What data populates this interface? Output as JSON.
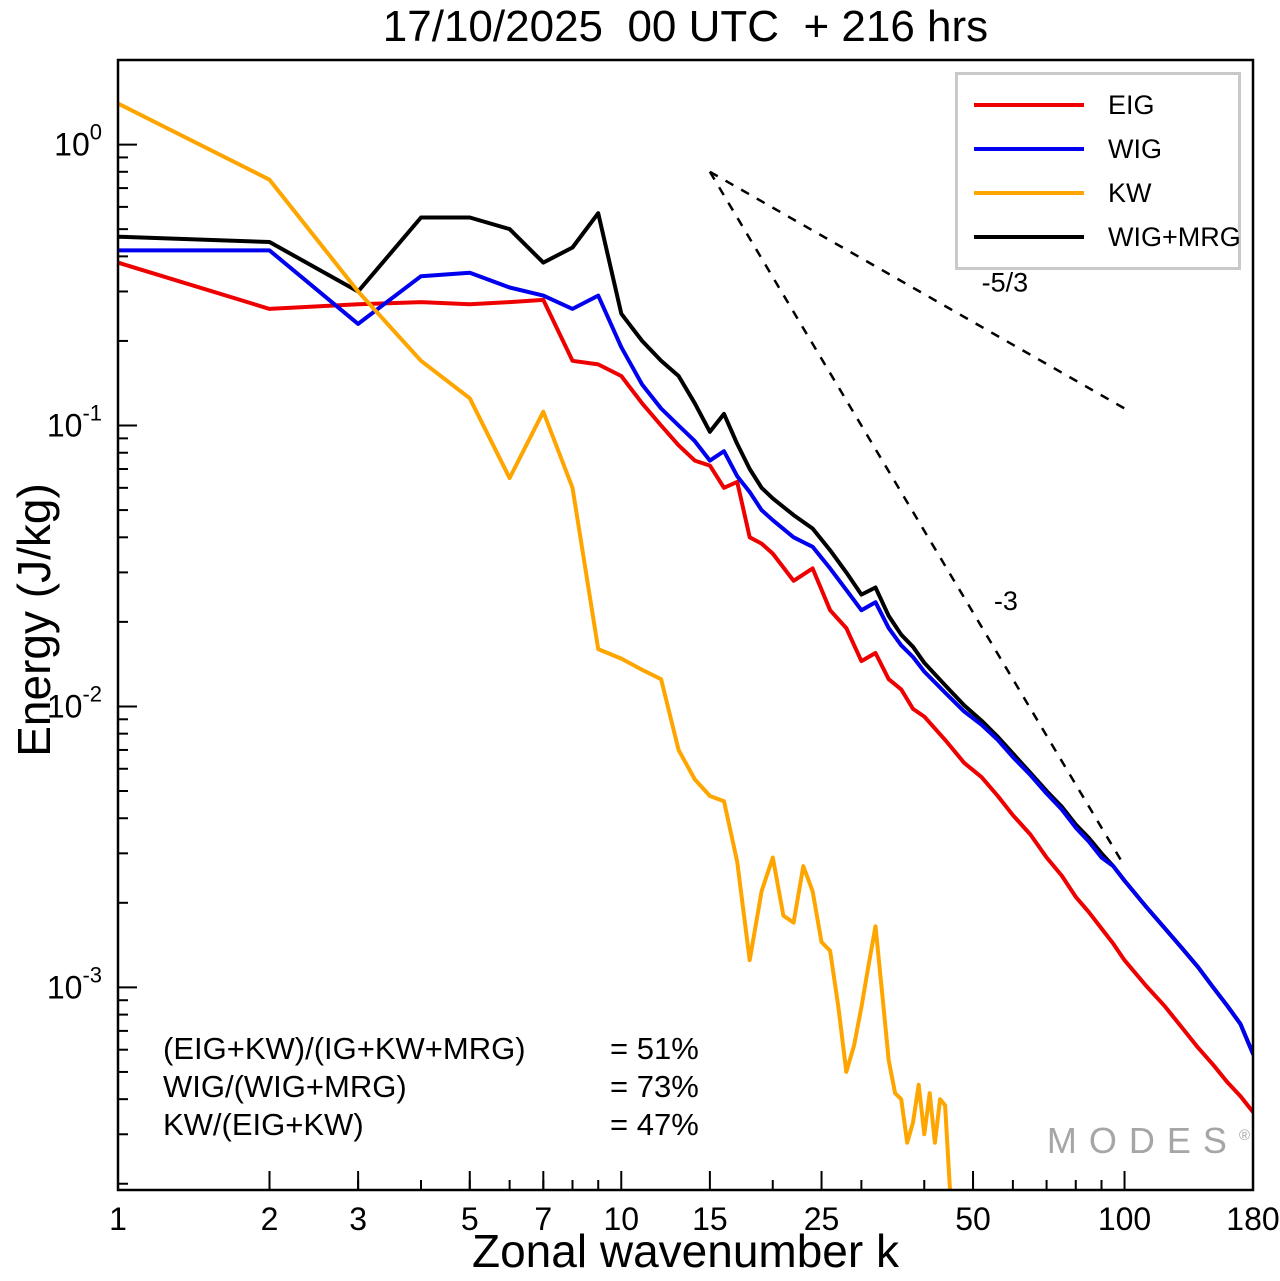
{
  "title": "17/10/2025  00 UTC  + 216 hrs",
  "axes": {
    "x": {
      "label": "Zonal wavenumber k",
      "min": 1,
      "max": 180,
      "scale": "log",
      "major_ticks": [
        1,
        2,
        3,
        5,
        7,
        10,
        15,
        25,
        50,
        100,
        180
      ]
    },
    "y": {
      "label": "Energy (J/kg)",
      "min": 0.00019,
      "max": 2.0,
      "scale": "log",
      "major_tick_exponents": [
        0,
        -1,
        -2,
        -3
      ]
    }
  },
  "legend": {
    "items": [
      {
        "label": "EIG",
        "color": "#ee0000"
      },
      {
        "label": "WIG",
        "color": "#0000ee"
      },
      {
        "label": "KW",
        "color": "#ffa500"
      },
      {
        "label": "WIG+MRG",
        "color": "#000000"
      }
    ]
  },
  "reference_lines": [
    {
      "label": "-5/3",
      "from": [
        15,
        0.8
      ],
      "to": [
        100,
        0.115
      ],
      "label_pos": [
        52,
        0.3
      ]
    },
    {
      "label": "-3",
      "from": [
        15,
        0.8
      ],
      "to": [
        100,
        0.0027
      ],
      "label_pos": [
        55,
        0.022
      ]
    }
  ],
  "ratio_annotations": {
    "rows": [
      {
        "formula": "(EIG+KW)/(IG+KW+MRG)",
        "value": "= 51%"
      },
      {
        "formula": "WIG/(WIG+MRG)",
        "value": "= 73%"
      },
      {
        "formula": "KW/(EIG+KW)",
        "value": "= 47%"
      }
    ]
  },
  "watermark": {
    "text": "MODES",
    "mark": "®"
  },
  "chart_data": {
    "type": "line",
    "title": "17/10/2025  00 UTC  + 216 hrs",
    "xlabel": "Zonal wavenumber k",
    "ylabel": "Energy (J/kg)",
    "xscale": "log",
    "yscale": "log",
    "xlim": [
      1,
      180
    ],
    "ylim": [
      0.00019,
      2.0
    ],
    "x": [
      1,
      2,
      3,
      4,
      5,
      6,
      7,
      8,
      9,
      10,
      11,
      12,
      13,
      14,
      15,
      16,
      17,
      18,
      19,
      20,
      22,
      24,
      26,
      28,
      30,
      32,
      34,
      36,
      38,
      40,
      44,
      48,
      52,
      56,
      60,
      65,
      70,
      75,
      80,
      85,
      90,
      95,
      100,
      110,
      120,
      130,
      140,
      150,
      160,
      170,
      180
    ],
    "series": [
      {
        "name": "EIG",
        "color": "#ee0000",
        "z": 1,
        "values": [
          0.38,
          0.26,
          0.27,
          0.275,
          0.27,
          0.275,
          0.28,
          0.17,
          0.165,
          0.15,
          0.12,
          0.1,
          0.085,
          0.075,
          0.072,
          0.06,
          0.063,
          0.04,
          0.038,
          0.035,
          0.028,
          0.031,
          0.022,
          0.019,
          0.0145,
          0.0155,
          0.0125,
          0.0115,
          0.0098,
          0.0092,
          0.0076,
          0.0063,
          0.0056,
          0.0048,
          0.0041,
          0.0035,
          0.0029,
          0.0025,
          0.0021,
          0.00185,
          0.00162,
          0.00143,
          0.00125,
          0.00102,
          0.00086,
          0.00072,
          0.00061,
          0.00053,
          0.00046,
          0.00041,
          0.00036
        ]
      },
      {
        "name": "WIG",
        "color": "#0000ee",
        "z": 3,
        "values": [
          0.42,
          0.42,
          0.23,
          0.34,
          0.35,
          0.31,
          0.29,
          0.26,
          0.29,
          0.19,
          0.14,
          0.115,
          0.1,
          0.088,
          0.075,
          0.081,
          0.066,
          0.058,
          0.05,
          0.046,
          0.04,
          0.037,
          0.031,
          0.026,
          0.022,
          0.0235,
          0.019,
          0.0165,
          0.015,
          0.0133,
          0.0112,
          0.0096,
          0.0086,
          0.0076,
          0.0066,
          0.0057,
          0.0049,
          0.0043,
          0.0037,
          0.0033,
          0.0029,
          0.0027,
          0.0024,
          0.00195,
          0.00163,
          0.00138,
          0.00118,
          0.001,
          0.00086,
          0.00074,
          0.00058
        ]
      },
      {
        "name": "KW",
        "color": "#ffa500",
        "z": 4,
        "x": [
          1,
          2,
          3,
          4,
          5,
          6,
          7,
          8,
          9,
          10,
          11,
          12,
          13,
          14,
          15,
          16,
          17,
          18,
          19,
          20,
          21,
          22,
          23,
          24,
          25,
          26,
          27,
          28,
          29,
          30,
          31,
          32,
          33,
          34,
          35,
          36,
          37,
          38,
          39,
          40,
          41,
          42,
          43,
          44,
          45
        ],
        "values": [
          1.4,
          0.75,
          0.3,
          0.17,
          0.125,
          0.065,
          0.112,
          0.06,
          0.016,
          0.0148,
          0.0135,
          0.0125,
          0.007,
          0.0055,
          0.0048,
          0.0046,
          0.0028,
          0.00125,
          0.0022,
          0.0029,
          0.0018,
          0.0017,
          0.0027,
          0.0022,
          0.00145,
          0.00135,
          0.00085,
          0.0005,
          0.00062,
          0.00085,
          0.0012,
          0.00165,
          0.00095,
          0.00055,
          0.00042,
          0.0004,
          0.00028,
          0.00033,
          0.00045,
          0.0003,
          0.00042,
          0.00028,
          0.0004,
          0.00038,
          0.00019
        ]
      },
      {
        "name": "WIG+MRG",
        "color": "#000000",
        "z": 2,
        "values": [
          0.47,
          0.45,
          0.3,
          0.55,
          0.55,
          0.5,
          0.38,
          0.43,
          0.57,
          0.25,
          0.2,
          0.17,
          0.15,
          0.12,
          0.095,
          0.11,
          0.086,
          0.07,
          0.06,
          0.055,
          0.048,
          0.043,
          0.036,
          0.03,
          0.025,
          0.0265,
          0.021,
          0.018,
          0.0163,
          0.0143,
          0.0119,
          0.0101,
          0.0089,
          0.0078,
          0.0068,
          0.0058,
          0.005,
          0.0044,
          0.0038,
          0.0034,
          0.003,
          0.0027,
          0.0024,
          0.00195,
          0.00163,
          0.00138,
          0.00118,
          0.001,
          0.00086,
          0.00074,
          0.00058
        ]
      }
    ]
  }
}
